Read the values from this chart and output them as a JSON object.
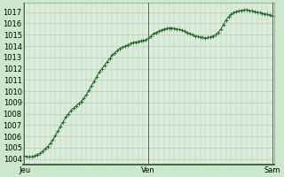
{
  "bg_color": "#cce8cc",
  "plot_bg_color": "#d8eed8",
  "line_color": "#2d6a2d",
  "marker_color": "#2d6a2d",
  "grid_color_major": "#c0b8c0",
  "grid_color_minor": "#d0ccd0",
  "ylim_min": 1003.5,
  "ylim_max": 1017.8,
  "yticks": [
    1004,
    1005,
    1006,
    1007,
    1008,
    1009,
    1010,
    1011,
    1012,
    1013,
    1014,
    1015,
    1016,
    1017
  ],
  "xtick_labels": [
    "Jeu",
    "Ven",
    "Sam"
  ],
  "xtick_positions": [
    0,
    48,
    96
  ],
  "n_points": 97,
  "y_values": [
    1004.3,
    1004.2,
    1004.2,
    1004.2,
    1004.3,
    1004.4,
    1004.5,
    1004.7,
    1004.9,
    1005.1,
    1005.4,
    1005.7,
    1006.1,
    1006.5,
    1006.9,
    1007.3,
    1007.7,
    1008.0,
    1008.3,
    1008.5,
    1008.7,
    1008.9,
    1009.1,
    1009.4,
    1009.7,
    1010.1,
    1010.5,
    1010.9,
    1011.3,
    1011.7,
    1012.0,
    1012.3,
    1012.6,
    1012.9,
    1013.2,
    1013.4,
    1013.6,
    1013.8,
    1013.9,
    1014.0,
    1014.1,
    1014.2,
    1014.3,
    1014.35,
    1014.4,
    1014.45,
    1014.5,
    1014.55,
    1014.7,
    1014.9,
    1015.1,
    1015.2,
    1015.3,
    1015.4,
    1015.5,
    1015.55,
    1015.6,
    1015.6,
    1015.55,
    1015.5,
    1015.45,
    1015.4,
    1015.3,
    1015.2,
    1015.1,
    1015.0,
    1014.9,
    1014.85,
    1014.8,
    1014.75,
    1014.7,
    1014.75,
    1014.8,
    1014.9,
    1015.0,
    1015.2,
    1015.5,
    1015.9,
    1016.3,
    1016.6,
    1016.8,
    1016.95,
    1017.05,
    1017.1,
    1017.15,
    1017.2,
    1017.2,
    1017.15,
    1017.1,
    1017.05,
    1017.0,
    1016.95,
    1016.9,
    1016.85,
    1016.8,
    1016.75,
    1016.7
  ],
  "tick_fontsize": 6.0,
  "line_width": 0.8,
  "marker_size": 2.8,
  "marker_edge_width": 0.7
}
